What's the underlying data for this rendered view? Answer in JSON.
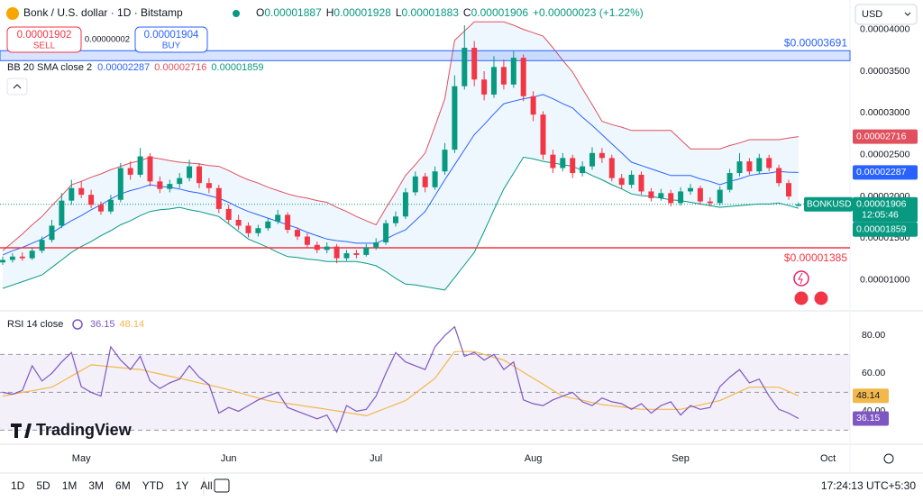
{
  "header": {
    "symbol": "Bonk / U.S. dollar · 1D · Bitstamp",
    "o_label": "O",
    "o": "0.00001887",
    "h_label": "H",
    "h": "0.00001928",
    "l_label": "L",
    "l": "0.00001883",
    "c_label": "C",
    "c": "0.00001906",
    "change": "+0.00000023 (+1.22%)",
    "currency": "USD"
  },
  "trade": {
    "sell_price": "0.00001902",
    "sell": "SELL",
    "spread": "0.00000002",
    "buy_price": "0.00001904",
    "buy": "BUY"
  },
  "logo": "TradingView",
  "toolbar": {
    "ranges": [
      "1D",
      "5D",
      "1M",
      "3M",
      "6M",
      "YTD",
      "1Y",
      "All"
    ],
    "clock": "17:24:13 UTC+5:30"
  },
  "chart_data": {
    "type": "candlestick",
    "up_color": "#089981",
    "down_color": "#f23645",
    "categories": [
      null,
      null,
      null,
      null,
      null,
      null,
      null,
      null,
      "May",
      null,
      null,
      null,
      null,
      null,
      null,
      null,
      null,
      null,
      null,
      null,
      null,
      null,
      null,
      "Jun",
      null,
      null,
      null,
      null,
      null,
      null,
      null,
      null,
      null,
      null,
      null,
      null,
      null,
      null,
      "Jul",
      null,
      null,
      null,
      null,
      null,
      null,
      null,
      null,
      null,
      null,
      null,
      null,
      null,
      null,
      null,
      "Aug",
      null,
      null,
      null,
      null,
      null,
      null,
      null,
      null,
      null,
      null,
      null,
      null,
      null,
      null,
      "Sep",
      null,
      null,
      null,
      null,
      null,
      null,
      null,
      null,
      null,
      null,
      null,
      null,
      null,
      null,
      "Oct",
      null
    ],
    "ohlc": [
      [
        1.21e-05,
        1.28e-05,
        1.18e-05,
        1.24e-05
      ],
      [
        1.24e-05,
        1.32e-05,
        1.21e-05,
        1.28e-05
      ],
      [
        1.28e-05,
        1.33e-05,
        1.23e-05,
        1.26e-05
      ],
      [
        1.26e-05,
        1.39e-05,
        1.24e-05,
        1.35e-05
      ],
      [
        1.35e-05,
        1.52e-05,
        1.32e-05,
        1.48e-05
      ],
      [
        1.48e-05,
        1.72e-05,
        1.45e-05,
        1.65e-05
      ],
      [
        1.65e-05,
        2.04e-05,
        1.62e-05,
        1.95e-05
      ],
      [
        1.95e-05,
        2.2e-05,
        1.9e-05,
        2.1e-05
      ],
      [
        2.1e-05,
        2.18e-05,
        1.98e-05,
        2.02e-05
      ],
      [
        2.02e-05,
        2.08e-05,
        1.86e-05,
        1.9e-05
      ],
      [
        1.9e-05,
        1.94e-05,
        1.78e-05,
        1.82e-05
      ],
      [
        1.82e-05,
        2.02e-05,
        1.79e-05,
        1.96e-05
      ],
      [
        1.96e-05,
        2.4e-05,
        1.93e-05,
        2.34e-05
      ],
      [
        2.34e-05,
        2.42e-05,
        2.2e-05,
        2.26e-05
      ],
      [
        2.26e-05,
        2.58e-05,
        2.23e-05,
        2.48e-05
      ],
      [
        2.48e-05,
        2.52e-05,
        2.12e-05,
        2.18e-05
      ],
      [
        2.18e-05,
        2.24e-05,
        2.04e-05,
        2.09e-05
      ],
      [
        2.09e-05,
        2.2e-05,
        2.05e-05,
        2.15e-05
      ],
      [
        2.15e-05,
        2.28e-05,
        2.1e-05,
        2.22e-05
      ],
      [
        2.22e-05,
        2.44e-05,
        2.18e-05,
        2.36e-05
      ],
      [
        2.36e-05,
        2.4e-05,
        2.1e-05,
        2.16e-05
      ],
      [
        2.16e-05,
        2.22e-05,
        2.04e-05,
        2.1e-05
      ],
      [
        2.1e-05,
        2.14e-05,
        1.8e-05,
        1.85e-05
      ],
      [
        1.85e-05,
        1.9e-05,
        1.68e-05,
        1.72e-05
      ],
      [
        1.72e-05,
        1.78e-05,
        1.6e-05,
        1.65e-05
      ],
      [
        1.65e-05,
        1.69e-05,
        1.51e-05,
        1.56e-05
      ],
      [
        1.56e-05,
        1.66e-05,
        1.52e-05,
        1.62e-05
      ],
      [
        1.62e-05,
        1.74e-05,
        1.59e-05,
        1.7e-05
      ],
      [
        1.7e-05,
        1.84e-05,
        1.67e-05,
        1.78e-05
      ],
      [
        1.78e-05,
        1.81e-05,
        1.56e-05,
        1.6e-05
      ],
      [
        1.6e-05,
        1.63e-05,
        1.48e-05,
        1.52e-05
      ],
      [
        1.52e-05,
        1.56e-05,
        1.38e-05,
        1.42e-05
      ],
      [
        1.42e-05,
        1.46e-05,
        1.32e-05,
        1.36e-05
      ],
      [
        1.36e-05,
        1.45e-05,
        1.32e-05,
        1.4e-05
      ],
      [
        1.4e-05,
        1.43e-05,
        1.2e-05,
        1.26e-05
      ],
      [
        1.26e-05,
        1.36e-05,
        1.23e-05,
        1.32e-05
      ],
      [
        1.32e-05,
        1.36e-05,
        1.26e-05,
        1.3e-05
      ],
      [
        1.3e-05,
        1.43e-05,
        1.28e-05,
        1.39e-05
      ],
      [
        1.39e-05,
        1.5e-05,
        1.36e-05,
        1.45e-05
      ],
      [
        1.45e-05,
        1.72e-05,
        1.42e-05,
        1.68e-05
      ],
      [
        1.68e-05,
        1.82e-05,
        1.64e-05,
        1.76e-05
      ],
      [
        1.76e-05,
        2.1e-05,
        1.73e-05,
        2.05e-05
      ],
      [
        2.05e-05,
        2.3e-05,
        2.01e-05,
        2.24e-05
      ],
      [
        2.24e-05,
        2.28e-05,
        2.05e-05,
        2.11e-05
      ],
      [
        2.11e-05,
        2.36e-05,
        2.08e-05,
        2.3e-05
      ],
      [
        2.3e-05,
        2.64e-05,
        2.26e-05,
        2.56e-05
      ],
      [
        2.56e-05,
        3.45e-05,
        2.52e-05,
        3.32e-05
      ],
      [
        3.32e-05,
        4.05e-05,
        3.28e-05,
        3.78e-05
      ],
      [
        3.78e-05,
        3.86e-05,
        3.32e-05,
        3.4e-05
      ],
      [
        3.4e-05,
        3.5e-05,
        3.15e-05,
        3.22e-05
      ],
      [
        3.22e-05,
        3.68e-05,
        3.18e-05,
        3.55e-05
      ],
      [
        3.55e-05,
        3.64e-05,
        3.28e-05,
        3.34e-05
      ],
      [
        3.34e-05,
        3.74e-05,
        3.3e-05,
        3.66e-05
      ],
      [
        3.66e-05,
        3.7e-05,
        3.14e-05,
        3.2e-05
      ],
      [
        3.2e-05,
        3.26e-05,
        2.9e-05,
        2.98e-05
      ],
      [
        2.98e-05,
        3.02e-05,
        2.44e-05,
        2.5e-05
      ],
      [
        2.5e-05,
        2.56e-05,
        2.28e-05,
        2.34e-05
      ],
      [
        2.34e-05,
        2.52e-05,
        2.3e-05,
        2.46e-05
      ],
      [
        2.46e-05,
        2.5e-05,
        2.22e-05,
        2.28e-05
      ],
      [
        2.28e-05,
        2.42e-05,
        2.24e-05,
        2.36e-05
      ],
      [
        2.36e-05,
        2.59e-05,
        2.32e-05,
        2.52e-05
      ],
      [
        2.52e-05,
        2.58e-05,
        2.4e-05,
        2.46e-05
      ],
      [
        2.46e-05,
        2.5e-05,
        2.18e-05,
        2.22e-05
      ],
      [
        2.22e-05,
        2.27e-05,
        2.09e-05,
        2.14e-05
      ],
      [
        2.14e-05,
        2.31e-05,
        2.1e-05,
        2.26e-05
      ],
      [
        2.26e-05,
        2.3e-05,
        2.02e-05,
        2.06e-05
      ],
      [
        2.06e-05,
        2.1e-05,
        1.94e-05,
        1.98e-05
      ],
      [
        1.98e-05,
        2.09e-05,
        1.95e-05,
        2.04e-05
      ],
      [
        2.04e-05,
        2.08e-05,
        1.88e-05,
        1.92e-05
      ],
      [
        1.92e-05,
        2.11e-05,
        1.89e-05,
        2.06e-05
      ],
      [
        2.06e-05,
        2.15e-05,
        2.02e-05,
        2.1e-05
      ],
      [
        2.1e-05,
        2.13e-05,
        1.9e-05,
        1.94e-05
      ],
      [
        1.94e-05,
        1.99e-05,
        1.88e-05,
        1.92e-05
      ],
      [
        1.92e-05,
        2.12e-05,
        1.89e-05,
        2.08e-05
      ],
      [
        2.08e-05,
        2.33e-05,
        2.05e-05,
        2.28e-05
      ],
      [
        2.28e-05,
        2.52e-05,
        2.24e-05,
        2.42e-05
      ],
      [
        2.42e-05,
        2.46e-05,
        2.26e-05,
        2.3e-05
      ],
      [
        2.3e-05,
        2.51e-05,
        2.27e-05,
        2.46e-05
      ],
      [
        2.46e-05,
        2.5e-05,
        2.3e-05,
        2.34e-05
      ],
      [
        2.34e-05,
        2.38e-05,
        2.12e-05,
        2.16e-05
      ],
      [
        2.16e-05,
        2.2e-05,
        1.96e-05,
        2e-05
      ],
      [
        1.887e-05,
        1.928e-05,
        1.883e-05,
        1.906e-05
      ]
    ],
    "ylim": [
      6.3e-06,
      4.05e-05
    ],
    "yticks": [
      {
        "value": 1e-05,
        "label": "0.00001000"
      },
      {
        "value": 1.5e-05,
        "label": "0.00001500"
      },
      {
        "value": 2e-05,
        "label": "0.00002000"
      },
      {
        "value": 2.5e-05,
        "label": "0.00002500"
      },
      {
        "value": 3e-05,
        "label": "0.00003000"
      },
      {
        "value": 3.5e-05,
        "label": "0.00003500"
      },
      {
        "value": 4e-05,
        "label": "0.00004000"
      }
    ],
    "grid": false,
    "last": {
      "symbol": "BONKUSD",
      "price_label": "0.00001906",
      "countdown": "12:05:46",
      "line_color": "#089981"
    },
    "levels": [
      {
        "value": 3.691e-05,
        "label": "$0.00003691",
        "color": "#2962ff",
        "zone": true
      },
      {
        "value": 1.385e-05,
        "label": "$0.00001385",
        "color": "#f23645",
        "zone": false
      }
    ],
    "bands": {
      "title": "BB 20 SMA close 2",
      "fill": "rgba(33,150,243,0.08)",
      "series": [
        {
          "color": "#2962ff",
          "value_label": "0.00002287",
          "values": [
            1.3e-05,
            1.35e-05,
            1.39e-05,
            1.44e-05,
            1.49e-05,
            1.56e-05,
            1.64e-05,
            1.71e-05,
            1.77e-05,
            1.84e-05,
            1.9e-05,
            1.97e-05,
            2.03e-05,
            2.07e-05,
            2.1e-05,
            2.14e-05,
            2.12e-05,
            2.11e-05,
            2.09e-05,
            2.06e-05,
            2.04e-05,
            2.01e-05,
            1.98e-05,
            1.93e-05,
            1.87e-05,
            1.82e-05,
            1.78e-05,
            1.74e-05,
            1.7e-05,
            1.66e-05,
            1.62e-05,
            1.57e-05,
            1.53e-05,
            1.49e-05,
            1.47e-05,
            1.46e-05,
            1.44e-05,
            1.44e-05,
            1.44e-05,
            1.49e-05,
            1.55e-05,
            1.6e-05,
            1.71e-05,
            1.82e-05,
            2.01e-05,
            2.2e-05,
            2.38e-05,
            2.56e-05,
            2.74e-05,
            2.86e-05,
            2.99e-05,
            3.11e-05,
            3.14e-05,
            3.17e-05,
            3.19e-05,
            3.22e-05,
            3.17e-05,
            3.11e-05,
            3.06e-05,
            2.95e-05,
            2.85e-05,
            2.74e-05,
            2.63e-05,
            2.52e-05,
            2.41e-05,
            2.37e-05,
            2.33e-05,
            2.29e-05,
            2.25e-05,
            2.25e-05,
            2.25e-05,
            2.21e-05,
            2.18e-05,
            2.14e-05,
            2.18e-05,
            2.21e-05,
            2.25e-05,
            2.27e-05,
            2.28e-05,
            2.3e-05,
            2.29e-05,
            2.287e-05
          ]
        },
        {
          "color": "#e0505e",
          "value_label": "0.00002716",
          "values": [
            1.35e-05,
            1.45e-05,
            1.55e-05,
            1.66e-05,
            1.76e-05,
            1.89e-05,
            2.01e-05,
            2.14e-05,
            2.18e-05,
            2.23e-05,
            2.27e-05,
            2.32e-05,
            2.36e-05,
            2.4e-05,
            2.43e-05,
            2.47e-05,
            2.45e-05,
            2.43e-05,
            2.41e-05,
            2.4e-05,
            2.39e-05,
            2.37e-05,
            2.36e-05,
            2.31e-05,
            2.25e-05,
            2.2e-05,
            2.16e-05,
            2.11e-05,
            2.07e-05,
            2.03e-05,
            2e-05,
            1.98e-05,
            1.95e-05,
            1.93e-05,
            1.87e-05,
            1.82e-05,
            1.76e-05,
            1.71e-05,
            1.66e-05,
            1.86e-05,
            2.05e-05,
            2.25e-05,
            2.38e-05,
            2.52e-05,
            2.84e-05,
            3.17e-05,
            3.87e-05,
            3.98e-05,
            4.09e-05,
            4.09e-05,
            4.09e-05,
            4.09e-05,
            4.05e-05,
            4e-05,
            3.96e-05,
            3.92e-05,
            3.78e-05,
            3.63e-05,
            3.49e-05,
            3.29e-05,
            3.1e-05,
            2.9e-05,
            2.86e-05,
            2.83e-05,
            2.79e-05,
            2.79e-05,
            2.79e-05,
            2.79e-05,
            2.79e-05,
            2.68e-05,
            2.57e-05,
            2.57e-05,
            2.57e-05,
            2.57e-05,
            2.61e-05,
            2.64e-05,
            2.68e-05,
            2.68e-05,
            2.68e-05,
            2.68e-05,
            2.7e-05,
            2.716e-05
          ]
        },
        {
          "color": "#089981",
          "value_label": "0.00001859",
          "values": [
            9e-06,
            9.4e-06,
            9.8e-06,
            1.02e-05,
            1.06e-05,
            1.15e-05,
            1.24e-05,
            1.33e-05,
            1.4e-05,
            1.46e-05,
            1.53e-05,
            1.59e-05,
            1.66e-05,
            1.71e-05,
            1.77e-05,
            1.82e-05,
            1.84e-05,
            1.85e-05,
            1.87e-05,
            1.84e-05,
            1.82e-05,
            1.79e-05,
            1.76e-05,
            1.67e-05,
            1.58e-05,
            1.49e-05,
            1.44e-05,
            1.39e-05,
            1.33e-05,
            1.28e-05,
            1.27e-05,
            1.25e-05,
            1.24e-05,
            1.22e-05,
            1.22e-05,
            1.22e-05,
            1.22e-05,
            1.2e-05,
            1.17e-05,
            1.1e-05,
            1.02e-05,
            9.5e-06,
            9.4e-06,
            9.2e-06,
            9e-06,
            8.8e-06,
            1.03e-05,
            1.18e-05,
            1.33e-05,
            1.58e-05,
            1.84e-05,
            2.09e-05,
            2.28e-05,
            2.47e-05,
            2.45e-05,
            2.42e-05,
            2.4e-05,
            2.38e-05,
            2.36e-05,
            2.31e-05,
            2.25e-05,
            2.2e-05,
            2.14e-05,
            2.09e-05,
            2.03e-05,
            2.01e-05,
            2e-05,
            1.98e-05,
            1.96e-05,
            1.95e-05,
            1.93e-05,
            1.91e-05,
            1.89e-05,
            1.87e-05,
            1.88e-05,
            1.89e-05,
            1.9e-05,
            1.91e-05,
            1.91e-05,
            1.92e-05,
            1.89e-05,
            1.859e-05
          ]
        }
      ]
    },
    "rsi": {
      "title": "RSI 14 close",
      "ylim": [
        24,
        93
      ],
      "yticks": [
        {
          "value": 40,
          "label": "40.00"
        },
        {
          "value": 60,
          "label": "60.00"
        },
        {
          "value": 80,
          "label": "80.00"
        }
      ],
      "bands": [
        30,
        50,
        70
      ],
      "band_fill": "rgba(126,87,194,0.09)",
      "series": [
        {
          "color": "#7e57c2",
          "value_label": "36.15",
          "values": [
            50,
            49,
            51,
            64,
            56,
            60,
            66,
            71,
            53,
            50,
            48,
            74,
            67,
            62,
            69,
            56,
            52,
            55,
            57,
            64,
            58,
            54,
            39,
            42,
            40,
            43,
            46,
            48,
            50,
            42,
            40,
            38,
            36,
            38,
            29,
            43,
            40,
            41,
            48,
            60,
            71,
            66,
            64,
            62,
            74,
            80,
            84.6,
            69,
            71,
            67,
            70,
            62,
            66,
            46,
            44,
            43,
            46,
            48,
            50,
            45,
            43,
            47,
            45,
            44,
            41,
            44,
            39,
            43,
            45,
            38,
            43,
            41,
            42,
            53,
            58,
            62,
            55,
            57,
            48,
            41,
            39,
            36.15
          ]
        },
        {
          "color": "#f2b84b",
          "value_label": "48.14",
          "values": [
            48,
            49,
            50,
            50.8,
            51.8,
            52.7,
            55.6,
            58.6,
            61.5,
            64.5,
            64,
            63.5,
            63,
            62.5,
            62,
            60.8,
            59.7,
            58.5,
            57.4,
            56.2,
            55,
            53.9,
            52.7,
            51.3,
            49.9,
            48.4,
            47,
            45.6,
            44.8,
            44.1,
            43.3,
            42.5,
            41.8,
            41,
            40.2,
            39.3,
            38.5,
            37.6,
            39.6,
            41.6,
            43.6,
            45.6,
            49.5,
            53.5,
            57.4,
            64.5,
            71.5,
            71.5,
            71.5,
            70,
            68.5,
            67,
            63.8,
            60.6,
            57.4,
            54.3,
            51.1,
            48,
            46.9,
            45.8,
            44.6,
            43.5,
            42.9,
            42.3,
            41.6,
            41,
            41,
            41,
            41,
            41,
            42.2,
            43.3,
            44.5,
            45.6,
            48,
            50.3,
            52.7,
            52.7,
            52.7,
            52.7,
            50.4,
            48.14
          ]
        }
      ]
    }
  }
}
